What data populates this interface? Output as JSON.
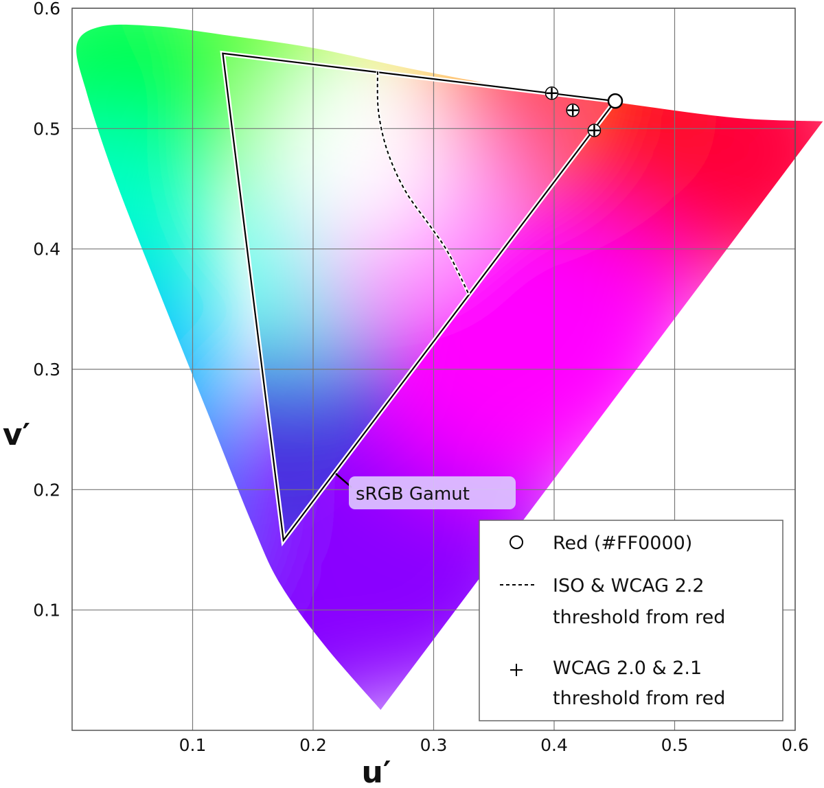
{
  "chart_data": {
    "type": "scatter",
    "title": "",
    "xlabel": "u′",
    "ylabel": "v′",
    "xlim": [
      0,
      0.6
    ],
    "ylim": [
      0,
      0.6
    ],
    "x_ticks": [
      0.1,
      0.2,
      0.3,
      0.4,
      0.5,
      0.6
    ],
    "y_ticks": [
      0.1,
      0.2,
      0.3,
      0.4,
      0.5,
      0.6
    ],
    "x_tick_labels": [
      "0.1",
      "0.2",
      "0.3",
      "0.4",
      "0.5",
      "0.6"
    ],
    "y_tick_labels": [
      "0.1",
      "0.2",
      "0.3",
      "0.4",
      "0.5",
      "0.6"
    ],
    "grid": true,
    "spectral_locus": [
      [
        0.256,
        0.017
      ],
      [
        0.21,
        0.07
      ],
      [
        0.173,
        0.121
      ],
      [
        0.15,
        0.17
      ],
      [
        0.112,
        0.265
      ],
      [
        0.07,
        0.37
      ],
      [
        0.035,
        0.46
      ],
      [
        0.012,
        0.53
      ],
      [
        0.004,
        0.57
      ],
      [
        0.025,
        0.585
      ],
      [
        0.07,
        0.585
      ],
      [
        0.125,
        0.578
      ],
      [
        0.2,
        0.567
      ],
      [
        0.28,
        0.55
      ],
      [
        0.36,
        0.535
      ],
      [
        0.45,
        0.522
      ],
      [
        0.55,
        0.509
      ],
      [
        0.623,
        0.506
      ]
    ],
    "srgb_gamut": {
      "label": "sRGB Gamut",
      "vertices": [
        [
          0.4507,
          0.5229
        ],
        [
          0.125,
          0.5625
        ],
        [
          0.1754,
          0.1579
        ]
      ]
    },
    "series": [
      {
        "name": "Red (#FF0000)",
        "marker": "circle",
        "points": [
          [
            0.4507,
            0.5229
          ]
        ]
      },
      {
        "name": "ISO & WCAG 2.2 threshold from red",
        "marker": "dashed-line",
        "points": [
          [
            0.2535,
            0.5474
          ],
          [
            0.2542,
            0.5145
          ],
          [
            0.2616,
            0.4814
          ],
          [
            0.2764,
            0.4484
          ],
          [
            0.2977,
            0.4182
          ],
          [
            0.3122,
            0.3966
          ],
          [
            0.3293,
            0.3621
          ]
        ]
      },
      {
        "name": "WCAG 2.0 & 2.1 threshold from red",
        "marker": "plus",
        "points": [
          [
            0.398,
            0.5294
          ],
          [
            0.4155,
            0.5152
          ],
          [
            0.4333,
            0.4985
          ]
        ]
      }
    ],
    "legend": {
      "position": "bottom-right",
      "entries": [
        {
          "marker": "circle",
          "lines": [
            "Red (#FF0000)"
          ]
        },
        {
          "marker": "dashed-line",
          "lines": [
            "ISO & WCAG 2.2",
            "threshold from red"
          ]
        },
        {
          "marker": "plus",
          "lines": [
            "WCAG 2.0 & 2.1",
            "threshold from red"
          ]
        }
      ]
    }
  }
}
